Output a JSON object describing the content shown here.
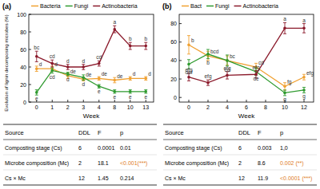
{
  "chart_data": [
    {
      "type": "line",
      "title": "(a)",
      "x_label": "Week",
      "y_label": "Evolution of lignin decomposing microbes (%)",
      "categories": [
        "0",
        "1",
        "2",
        "3",
        "4",
        "8",
        "10",
        "13"
      ],
      "ylim": [
        0,
        100
      ],
      "yticks": [
        0,
        20,
        40,
        60,
        80,
        100
      ],
      "grid": false,
      "legend": "top",
      "marker": "circle",
      "series": [
        {
          "name": "Bacteria",
          "color": "#f0a030",
          "values": [
            38,
            38,
            30,
            26,
            27,
            25,
            27,
            27
          ],
          "errors": [
            3,
            3,
            3,
            2,
            2,
            3,
            2,
            2
          ],
          "letters": [
            "d",
            "d",
            "de",
            "de",
            "de",
            "de",
            "d",
            "d"
          ]
        },
        {
          "name": "Fungi",
          "color": "#2e9a2e",
          "values": [
            11,
            36,
            32,
            28,
            18,
            12,
            12,
            12
          ],
          "errors": [
            3,
            3,
            2,
            3,
            2,
            2,
            2,
            2
          ],
          "letters": [
            "e",
            "cd",
            "d",
            "d",
            "e",
            "e",
            "e",
            "e"
          ]
        },
        {
          "name": "Actinobacteria",
          "color": "#8b1a2b",
          "values": [
            52,
            44,
            40,
            40,
            44,
            83,
            64,
            64
          ],
          "errors": [
            6,
            4,
            3,
            3,
            3,
            4,
            4,
            4
          ],
          "letters": [
            "bc",
            "cd",
            "d",
            "d",
            "cd",
            "a",
            "b",
            "b"
          ]
        }
      ]
    },
    {
      "type": "line",
      "title": "(b)",
      "x_label": "Week",
      "x": [
        0,
        2,
        4,
        7,
        10,
        12
      ],
      "xlim": [
        -1,
        13
      ],
      "xticks": [
        0,
        2,
        4,
        6,
        8,
        10,
        12
      ],
      "ylim": [
        -5,
        90
      ],
      "yticks": [
        0,
        20,
        40,
        60,
        80
      ],
      "grid": false,
      "legend": "top",
      "marker": "circle",
      "series": [
        {
          "name": "Bact",
          "color": "#f0a030",
          "values": [
            57,
            45,
            40,
            33,
            12,
            22
          ],
          "errors": [
            10,
            5,
            5,
            4,
            4,
            3
          ],
          "letters": [
            "b",
            "bcd",
            "bc",
            "cd",
            "fg",
            "efg"
          ]
        },
        {
          "name": "Fungi",
          "color": "#2e9a2e",
          "values": [
            36,
            47,
            40,
            28,
            5,
            8
          ],
          "errors": [
            5,
            5,
            6,
            4,
            3,
            3
          ],
          "letters": [
            "def",
            "b",
            "cd",
            "de",
            "g",
            "g"
          ]
        },
        {
          "name": "Actinobacteria",
          "color": "#8b1a2b",
          "values": [
            22,
            16,
            24,
            25,
            75,
            75
          ],
          "errors": [
            4,
            3,
            4,
            4,
            6,
            5
          ],
          "letters": [
            "efg",
            "efg",
            "efg",
            "efg",
            "a",
            "a"
          ]
        }
      ]
    }
  ],
  "tables": [
    {
      "columns": [
        "Source",
        "DDL",
        "F",
        "p"
      ],
      "rows": [
        [
          "Composting stage (Cs)",
          "6",
          "0.0001",
          "0.01"
        ],
        [
          "Microbe composition (Mc)",
          "2",
          "18.1",
          "<0.001(***)"
        ],
        [
          "Cs × Mc",
          "12",
          "1.45",
          "0.214"
        ]
      ]
    },
    {
      "columns": [
        "Source",
        "DDL",
        "F",
        "p"
      ],
      "rows": [
        [
          "Composting stage (Cs)",
          "6",
          "0.003",
          "1,0"
        ],
        [
          "Microbe composition (Mc)",
          "2",
          "8.6",
          "0.002 (**)"
        ],
        [
          "Cs × Mc",
          "12",
          "11.9",
          "<0.0001 (***)"
        ]
      ]
    }
  ]
}
